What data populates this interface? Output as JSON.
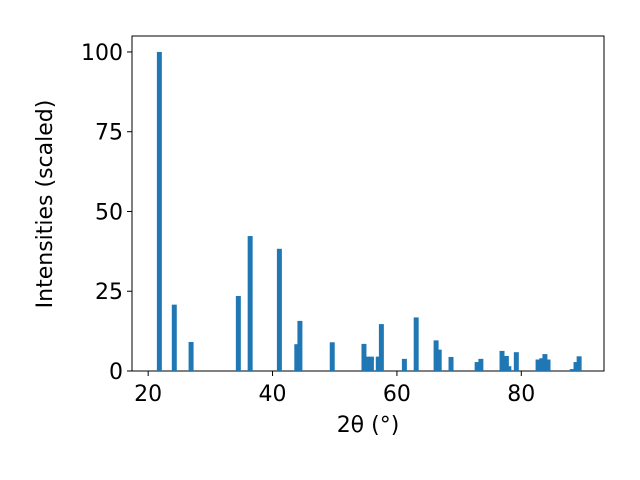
{
  "chart_data": {
    "type": "bar",
    "xlabel": "2θ (°)",
    "ylabel": "Intensities (scaled)",
    "color": "#1f77b4",
    "x": [
      21.8,
      24.2,
      26.9,
      34.5,
      36.4,
      41.1,
      43.9,
      44.4,
      49.6,
      54.7,
      55.2,
      55.9,
      57.0,
      57.5,
      61.2,
      63.1,
      66.3,
      66.8,
      68.7,
      72.9,
      73.5,
      76.9,
      77.6,
      78.0,
      79.2,
      82.7,
      83.3,
      83.8,
      84.3,
      88.2,
      88.8,
      89.3
    ],
    "values": [
      100,
      20.8,
      9.1,
      23.5,
      42.3,
      38.3,
      8.4,
      15.7,
      9.0,
      8.5,
      4.5,
      4.5,
      4.5,
      14.7,
      3.8,
      16.8,
      9.6,
      6.7,
      4.4,
      2.8,
      3.8,
      6.3,
      4.7,
      1.5,
      5.9,
      3.6,
      4.0,
      5.3,
      3.6,
      0.6,
      2.8,
      4.6
    ],
    "xlim": [
      17.4,
      93.3
    ],
    "ylim": [
      0,
      105
    ],
    "xticks": [
      20,
      40,
      60,
      80
    ],
    "yticks": [
      0,
      25,
      50,
      75,
      100
    ]
  }
}
